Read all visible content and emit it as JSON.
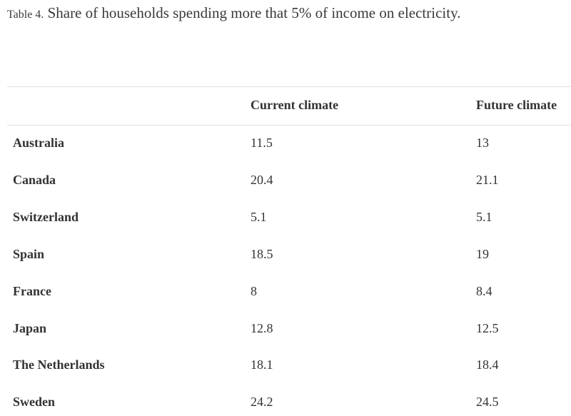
{
  "caption": {
    "label": "Table 4.",
    "text": "Share of households spending more that 5% of income on electricity."
  },
  "table": {
    "headers": [
      "",
      "Current climate",
      "Future climate"
    ],
    "rows": [
      {
        "country": "Australia",
        "current": "11.5",
        "future": "13"
      },
      {
        "country": "Canada",
        "current": "20.4",
        "future": "21.1"
      },
      {
        "country": "Switzerland",
        "current": "5.1",
        "future": "5.1"
      },
      {
        "country": "Spain",
        "current": "18.5",
        "future": "19"
      },
      {
        "country": "France",
        "current": "8",
        "future": "8.4"
      },
      {
        "country": "Japan",
        "current": "12.8",
        "future": "12.5"
      },
      {
        "country": "The Netherlands",
        "current": "18.1",
        "future": "18.4"
      },
      {
        "country": "Sweden",
        "current": "24.2",
        "future": "24.5"
      }
    ]
  }
}
